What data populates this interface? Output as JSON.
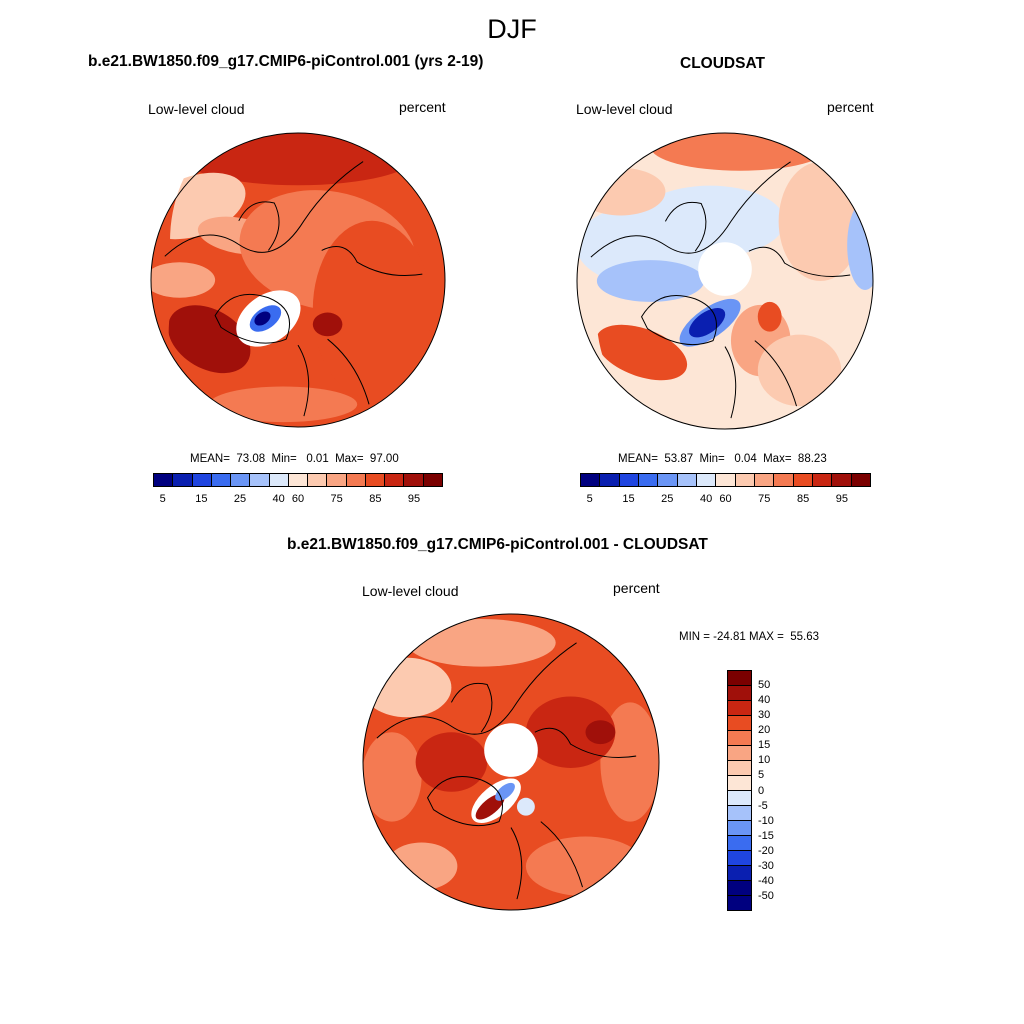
{
  "season": "DJF",
  "panels": [
    {
      "title": "b.e21.BW1850.f09_g17.CMIP6-piControl.001 (yrs 2-19)",
      "variable": "Low-level cloud",
      "units": "percent",
      "stats": "MEAN=  73.08  Min=   0.01  Max=  97.00",
      "mean": 73.08,
      "min": 0.01,
      "max": 97.0,
      "has_pole_hole": false,
      "colorbar_ticks": [
        "5",
        "15",
        "25",
        "40",
        "60",
        "75",
        "85",
        "95"
      ]
    },
    {
      "title": "CLOUDSAT",
      "variable": "Low-level cloud",
      "units": "percent",
      "stats": "MEAN=  53.87  Min=   0.04  Max=  88.23",
      "mean": 53.87,
      "min": 0.04,
      "max": 88.23,
      "has_pole_hole": true,
      "colorbar_ticks": [
        "5",
        "15",
        "25",
        "40",
        "60",
        "75",
        "85",
        "95"
      ]
    },
    {
      "title": "b.e21.BW1850.f09_g17.CMIP6-piControl.001 - CLOUDSAT",
      "variable": "Low-level cloud",
      "units": "percent",
      "stats": "MIN = -24.81 MAX =  55.63",
      "min": -24.81,
      "max": 55.63,
      "has_pole_hole": true,
      "colorbar_ticks": [
        "50",
        "40",
        "30",
        "20",
        "15",
        "10",
        "5",
        "0",
        "-5",
        "-10",
        "-15",
        "-20",
        "-30",
        "-40",
        "-50"
      ]
    }
  ],
  "colors": {
    "abs_scale": [
      "#00007f",
      "#0a1fb0",
      "#1f45e0",
      "#3a6cf0",
      "#6a95f5",
      "#a6c2fa",
      "#dce9fb",
      "#fde6d6",
      "#fccab0",
      "#f9a583",
      "#f47a52",
      "#e84c22",
      "#c92612",
      "#a0100a",
      "#7a0000"
    ],
    "diff_scale": [
      "#7a0000",
      "#a0100a",
      "#c92612",
      "#e84c22",
      "#f47a52",
      "#f9a583",
      "#fccab0",
      "#fde6d6",
      "#dce9fb",
      "#a6c2fa",
      "#6a95f5",
      "#3a6cf0",
      "#1f45e0",
      "#0a1fb0",
      "#00007f"
    ]
  }
}
